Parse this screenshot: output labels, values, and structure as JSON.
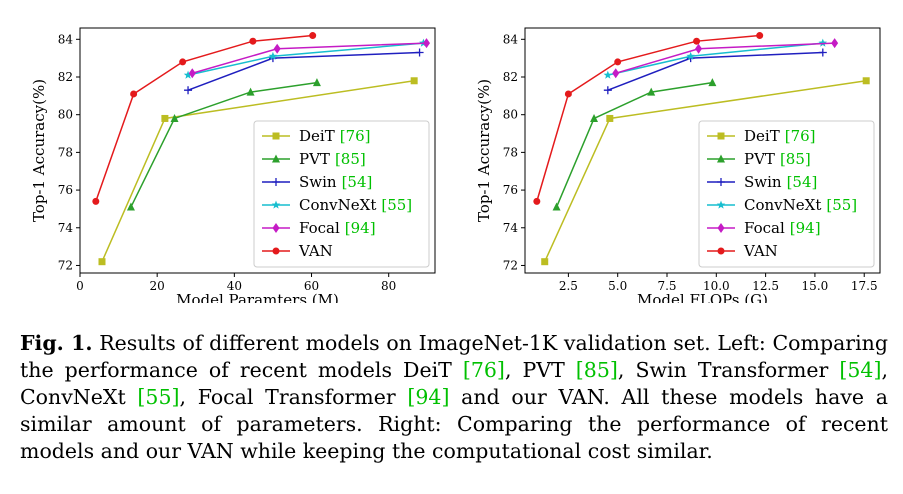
{
  "chart_data": [
    {
      "type": "line",
      "title": "",
      "xlabel": "Model Paramters (M)",
      "ylabel": "Top-1 Accuracy(%)",
      "xlim": [
        0,
        92
      ],
      "ylim": [
        71.6,
        84.6
      ],
      "xticks": [
        0,
        20,
        40,
        60,
        80
      ],
      "xtick_labels": [
        "0",
        "20",
        "40",
        "60",
        "80"
      ],
      "yticks": [
        72,
        74,
        76,
        78,
        80,
        82,
        84
      ],
      "ytick_labels": [
        "72",
        "74",
        "76",
        "78",
        "80",
        "82",
        "84"
      ],
      "legend_position": "lower-right",
      "series": [
        {
          "name": "DeiT",
          "ref": "[76]",
          "color": "#bcbd22",
          "marker": "square",
          "points": [
            [
              5.7,
              72.2
            ],
            [
              22,
              79.8
            ],
            [
              86.6,
              81.8
            ]
          ]
        },
        {
          "name": "PVT",
          "ref": "[85]",
          "color": "#2ca02c",
          "marker": "triangle",
          "points": [
            [
              13.2,
              75.1
            ],
            [
              24.5,
              79.8
            ],
            [
              44.2,
              81.2
            ],
            [
              61.4,
              81.7
            ]
          ]
        },
        {
          "name": "Swin",
          "ref": "[54]",
          "color": "#1f1fbf",
          "marker": "plus",
          "points": [
            [
              28,
              81.3
            ],
            [
              50,
              83.0
            ],
            [
              88,
              83.3
            ]
          ]
        },
        {
          "name": "ConvNeXt",
          "ref": "[55]",
          "color": "#17becf",
          "marker": "star",
          "points": [
            [
              28,
              82.1
            ],
            [
              50,
              83.1
            ],
            [
              89,
              83.8
            ]
          ]
        },
        {
          "name": "Focal",
          "ref": "[94]",
          "color": "#c51bc5",
          "marker": "diamond",
          "points": [
            [
              29.1,
              82.2
            ],
            [
              51.1,
              83.5
            ],
            [
              89.8,
              83.8
            ]
          ]
        },
        {
          "name": "VAN",
          "ref": "",
          "color": "#e41a1c",
          "marker": "circle",
          "points": [
            [
              4.1,
              75.4
            ],
            [
              13.9,
              81.1
            ],
            [
              26.6,
              82.8
            ],
            [
              44.8,
              83.9
            ],
            [
              60.3,
              84.2
            ]
          ]
        }
      ]
    },
    {
      "type": "line",
      "title": "",
      "xlabel": "Model FLOPs (G)",
      "ylabel": "Top-1 Accuracy(%)",
      "xlim": [
        0.3,
        18.3
      ],
      "ylim": [
        71.6,
        84.6
      ],
      "xticks": [
        2.5,
        5.0,
        7.5,
        10.0,
        12.5,
        15.0,
        17.5
      ],
      "xtick_labels": [
        "2.5",
        "5.0",
        "7.5",
        "10.0",
        "12.5",
        "15.0",
        "17.5"
      ],
      "yticks": [
        72,
        74,
        76,
        78,
        80,
        82,
        84
      ],
      "ytick_labels": [
        "72",
        "74",
        "76",
        "78",
        "80",
        "82",
        "84"
      ],
      "legend_position": "lower-right",
      "series": [
        {
          "name": "DeiT",
          "ref": "[76]",
          "color": "#bcbd22",
          "marker": "square",
          "points": [
            [
              1.3,
              72.2
            ],
            [
              4.6,
              79.8
            ],
            [
              17.6,
              81.8
            ]
          ]
        },
        {
          "name": "PVT",
          "ref": "[85]",
          "color": "#2ca02c",
          "marker": "triangle",
          "points": [
            [
              1.9,
              75.1
            ],
            [
              3.8,
              79.8
            ],
            [
              6.7,
              81.2
            ],
            [
              9.8,
              81.7
            ]
          ]
        },
        {
          "name": "Swin",
          "ref": "[54]",
          "color": "#1f1fbf",
          "marker": "plus",
          "points": [
            [
              4.5,
              81.3
            ],
            [
              8.7,
              83.0
            ],
            [
              15.4,
              83.3
            ]
          ]
        },
        {
          "name": "ConvNeXt",
          "ref": "[55]",
          "color": "#17becf",
          "marker": "star",
          "points": [
            [
              4.5,
              82.1
            ],
            [
              8.7,
              83.1
            ],
            [
              15.4,
              83.8
            ]
          ]
        },
        {
          "name": "Focal",
          "ref": "[94]",
          "color": "#c51bc5",
          "marker": "diamond",
          "points": [
            [
              4.9,
              82.2
            ],
            [
              9.1,
              83.5
            ],
            [
              16.0,
              83.8
            ]
          ]
        },
        {
          "name": "VAN",
          "ref": "",
          "color": "#e41a1c",
          "marker": "circle",
          "points": [
            [
              0.9,
              75.4
            ],
            [
              2.5,
              81.1
            ],
            [
              5.0,
              82.8
            ],
            [
              9.0,
              83.9
            ],
            [
              12.2,
              84.2
            ]
          ]
        }
      ]
    }
  ],
  "caption": {
    "label": "Fig. 1.",
    "parts": [
      {
        "t": " Results of different models on ImageNet-1K validation set. Left: Comparing the performance of recent models DeiT "
      },
      {
        "t": "[76]",
        "ref": true
      },
      {
        "t": ", PVT "
      },
      {
        "t": "[85]",
        "ref": true
      },
      {
        "t": ", Swin Transformer "
      },
      {
        "t": "[54]",
        "ref": true
      },
      {
        "t": ", ConvNeXt "
      },
      {
        "t": "[55]",
        "ref": true
      },
      {
        "t": ", Focal Transformer "
      },
      {
        "t": "[94]",
        "ref": true
      },
      {
        "t": " and our VAN. All these models have a similar amount of parameters. Right: Comparing the performance of recent models and our VAN while keeping the computational cost similar."
      }
    ]
  }
}
